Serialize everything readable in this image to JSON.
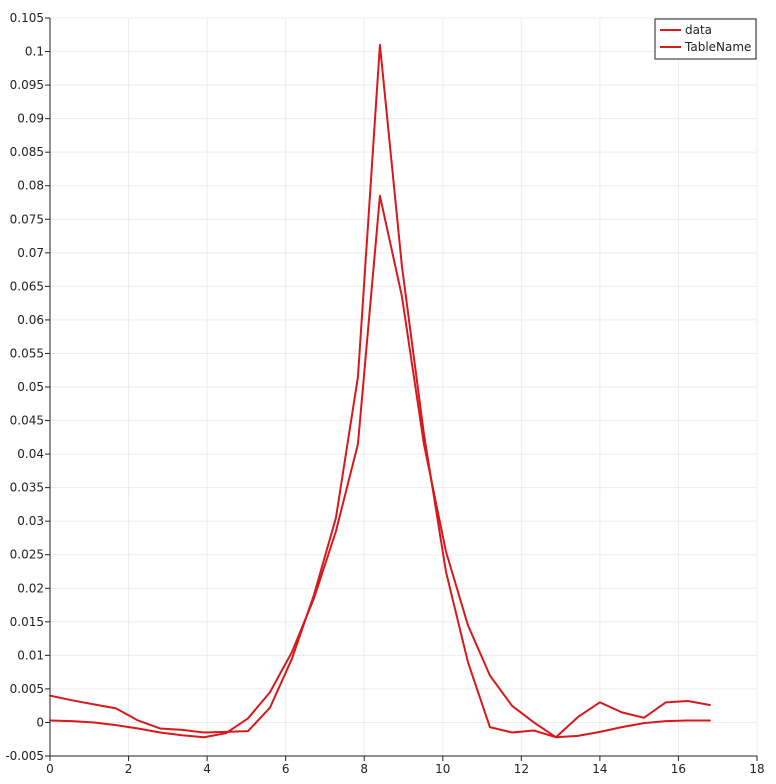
{
  "chart_data": {
    "type": "line",
    "title": "",
    "xlabel": "",
    "ylabel": "",
    "xlim": [
      0,
      18
    ],
    "ylim": [
      -0.005,
      0.105
    ],
    "x_ticks": [
      "0",
      "2",
      "4",
      "6",
      "8",
      "10",
      "12",
      "14",
      "16",
      "18"
    ],
    "y_ticks": [
      "-0.005",
      "0",
      "0.005",
      "0.01",
      "0.015",
      "0.02",
      "0.025",
      "0.03",
      "0.035",
      "0.04",
      "0.045",
      "0.05",
      "0.055",
      "0.06",
      "0.065",
      "0.07",
      "0.075",
      "0.08",
      "0.085",
      "0.09",
      "0.095",
      "0.1",
      "0.105"
    ],
    "grid": true,
    "legend_position": "top-right",
    "series_color": "#d7191c",
    "series": [
      {
        "name": "data",
        "x": [
          0,
          0.56,
          1.12,
          1.68,
          2.24,
          2.8,
          3.36,
          3.92,
          4.48,
          5.04,
          5.6,
          6.16,
          6.72,
          7.28,
          7.84,
          8.4,
          8.96,
          9.52,
          10.08,
          10.64,
          11.2,
          11.76,
          12.32,
          12.88,
          13.44,
          14.0,
          14.56,
          15.12,
          15.68,
          16.24,
          16.8
        ],
        "y": [
          0.0003,
          0.0002,
          0.0,
          -0.0004,
          -0.0009,
          -0.0015,
          -0.0019,
          -0.0022,
          -0.0016,
          0.0006,
          0.0045,
          0.0105,
          0.0185,
          0.0285,
          0.0415,
          0.0785,
          0.0635,
          0.0415,
          0.0255,
          0.0145,
          0.007,
          0.0025,
          0.0,
          -0.0022,
          -0.002,
          -0.0014,
          -0.0007,
          -0.0001,
          0.0002,
          0.0003,
          0.0003
        ]
      },
      {
        "name": "TableName",
        "x": [
          0,
          0.56,
          1.12,
          1.68,
          2.24,
          2.8,
          3.36,
          3.92,
          4.48,
          5.04,
          5.6,
          6.16,
          6.72,
          7.28,
          7.84,
          8.4,
          8.96,
          9.52,
          10.08,
          10.64,
          11.2,
          11.76,
          12.32,
          12.88,
          13.44,
          14.0,
          14.56,
          15.12,
          15.68,
          16.24,
          16.8
        ],
        "y": [
          0.004,
          0.0033,
          0.0027,
          0.0021,
          0.0003,
          -0.0009,
          -0.0011,
          -0.0015,
          -0.0014,
          -0.0013,
          0.0022,
          0.0095,
          0.019,
          0.0305,
          0.0515,
          0.101,
          0.068,
          0.043,
          0.0225,
          0.009,
          -0.0007,
          -0.0015,
          -0.0012,
          -0.0022,
          0.0008,
          0.003,
          0.0015,
          0.0007,
          0.003,
          0.0032,
          0.0026
        ]
      }
    ]
  }
}
